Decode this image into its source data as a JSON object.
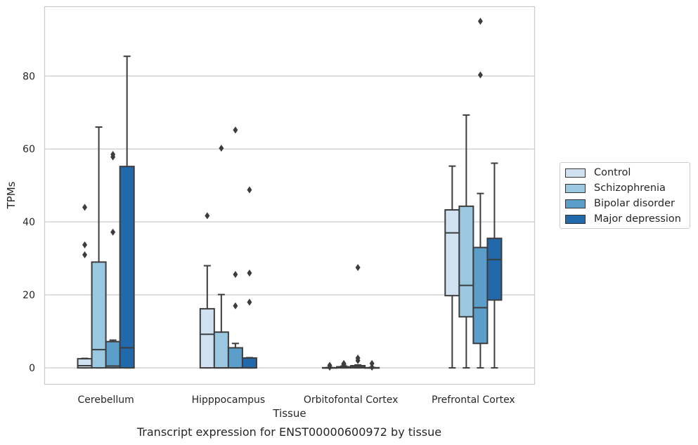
{
  "chart_data": {
    "type": "box",
    "categories": [
      "Cerebellum",
      "Hipppocampus",
      "Orbitofontal Cortex",
      "Prefrontal Cortex"
    ],
    "xlabel": "Tissue",
    "ylabel": "TPMs",
    "caption": "Transcript expression for ENST00000600972 by tissue",
    "ylim": [
      -4.5,
      99
    ],
    "yticks": [
      0,
      20,
      40,
      60,
      80
    ],
    "grid": true,
    "legend_position": "right",
    "series": [
      {
        "name": "Control",
        "color": "#d0e1f2",
        "boxes": [
          {
            "min": 0,
            "q1": 0,
            "median": 0.6,
            "q3": 2.5,
            "max": 2.6,
            "outliers": [
              31,
              33.7,
              44
            ]
          },
          {
            "min": 0,
            "q1": 0,
            "median": 9.2,
            "q3": 16.2,
            "max": 28,
            "outliers": [
              41.7
            ]
          },
          {
            "min": 0,
            "q1": 0,
            "median": 0,
            "q3": 0.05,
            "max": 0.1,
            "outliers": [
              0.2,
              0.7
            ]
          },
          {
            "min": 0,
            "q1": 19.8,
            "median": 37,
            "q3": 43.3,
            "max": 55.3,
            "outliers": []
          }
        ]
      },
      {
        "name": "Schizophrenia",
        "color": "#9ac8e0",
        "boxes": [
          {
            "min": 0,
            "q1": 0,
            "median": 5,
            "q3": 29,
            "max": 66,
            "outliers": []
          },
          {
            "min": 0,
            "q1": 0,
            "median": 0,
            "q3": 9.8,
            "max": 20.1,
            "outliers": [
              60.2
            ]
          },
          {
            "min": 0,
            "q1": 0,
            "median": 0.1,
            "q3": 0.3,
            "max": 0.5,
            "outliers": [
              0.9,
              1.2
            ]
          },
          {
            "min": 0,
            "q1": 14,
            "median": 22.6,
            "q3": 44.3,
            "max": 69.3,
            "outliers": []
          }
        ]
      },
      {
        "name": "Bipolar disorder",
        "color": "#5a9ec9",
        "boxes": [
          {
            "min": 0,
            "q1": 0,
            "median": 0.5,
            "q3": 7.2,
            "max": 7.6,
            "outliers": [
              37.2,
              57.8,
              58.5
            ]
          },
          {
            "min": 0,
            "q1": 0,
            "median": 0,
            "q3": 5.5,
            "max": 6.7,
            "outliers": [
              17,
              25.6,
              65.2
            ]
          },
          {
            "min": 0,
            "q1": 0,
            "median": 0.2,
            "q3": 0.6,
            "max": 0.8,
            "outliers": [
              2,
              2.7,
              27.5
            ]
          },
          {
            "min": 0,
            "q1": 6.7,
            "median": 16.5,
            "q3": 33,
            "max": 47.8,
            "outliers": [
              80.3,
              95
            ]
          }
        ]
      },
      {
        "name": "Major depression",
        "color": "#2269ac",
        "boxes": [
          {
            "min": 0,
            "q1": 0,
            "median": 5.5,
            "q3": 55.2,
            "max": 85.4,
            "outliers": []
          },
          {
            "min": 0,
            "q1": 0,
            "median": 0,
            "q3": 2.7,
            "max": 2.8,
            "outliers": [
              18,
              26,
              48.8
            ]
          },
          {
            "min": 0,
            "q1": 0,
            "median": 0,
            "q3": 0.05,
            "max": 0.1,
            "outliers": [
              0.2,
              1.2
            ]
          },
          {
            "min": 0,
            "q1": 18.6,
            "median": 29.7,
            "q3": 35.5,
            "max": 56.1,
            "outliers": []
          }
        ]
      }
    ]
  }
}
